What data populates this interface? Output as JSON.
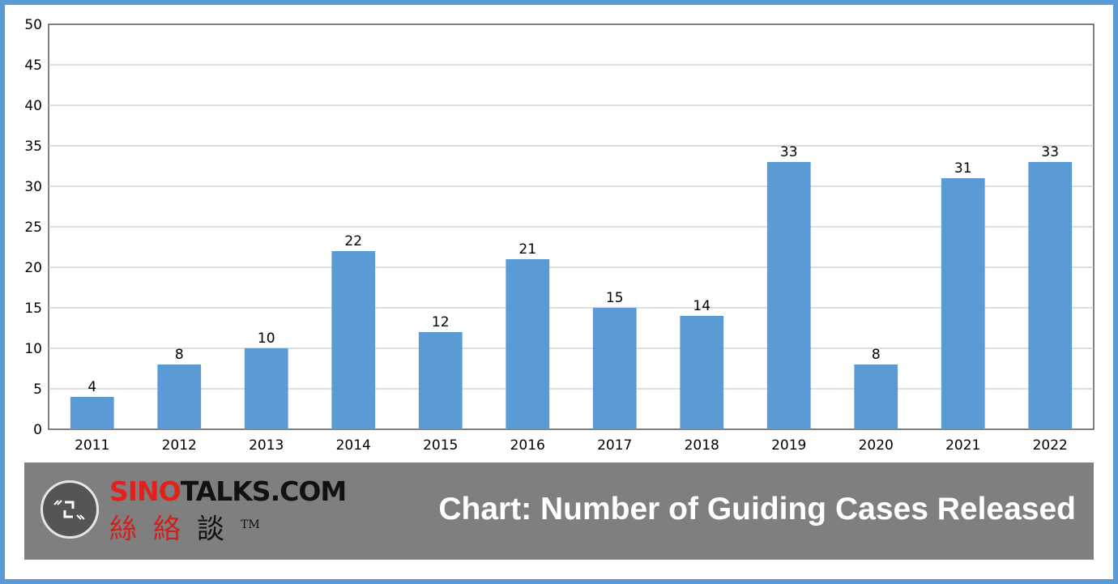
{
  "chart_data": {
    "type": "bar",
    "categories": [
      "2011",
      "2012",
      "2013",
      "2014",
      "2015",
      "2016",
      "2017",
      "2018",
      "2019",
      "2020",
      "2021",
      "2022"
    ],
    "values": [
      4,
      8,
      10,
      22,
      12,
      21,
      15,
      14,
      33,
      8,
      31,
      33
    ],
    "ylim": [
      0,
      50
    ],
    "yticks": [
      0,
      5,
      10,
      15,
      20,
      25,
      30,
      35,
      40,
      45,
      50
    ],
    "grid": true,
    "data_labels": true,
    "bar_color": "#5b9bd5",
    "title": "",
    "xlabel": "",
    "ylabel": ""
  },
  "banner": {
    "brand_red": "SINO",
    "brand_black": "TALKS.COM",
    "brand_cn_1": "絲",
    "brand_cn_2": "絡",
    "brand_cn_3": "談",
    "trademark": "TM",
    "caption": "Chart: Number of Guiding Cases Released",
    "background_color": "#7f7f7f",
    "logo_icon": "quote-brackets-icon"
  },
  "colors": {
    "frame_border": "#5b9bd5",
    "brand_red": "#e2211c"
  }
}
